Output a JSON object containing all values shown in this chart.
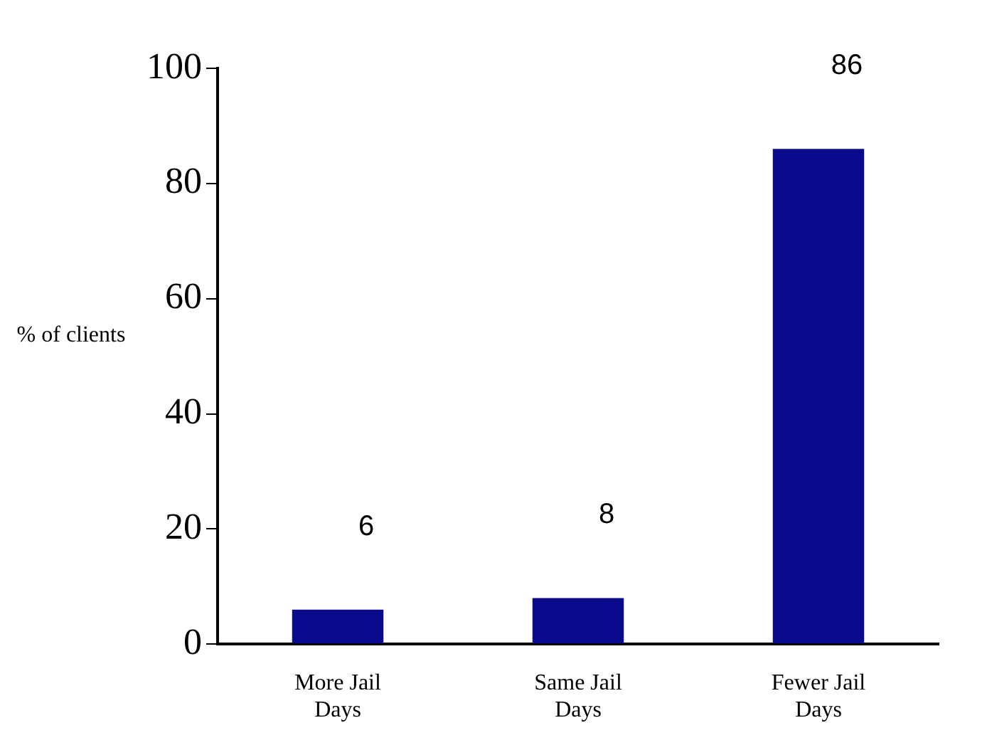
{
  "chart_data": {
    "type": "bar",
    "ylabel": "% of clients",
    "categories": [
      "More Jail Days",
      "Same Jail Days",
      "Fewer Jail Days"
    ],
    "values": [
      6,
      8,
      86
    ],
    "color": "#0a0a8c",
    "ylim": [
      0,
      100
    ],
    "yticks": [
      0,
      20,
      40,
      60,
      80,
      100
    ],
    "grid": false,
    "legend": false,
    "data_labels": true
  }
}
